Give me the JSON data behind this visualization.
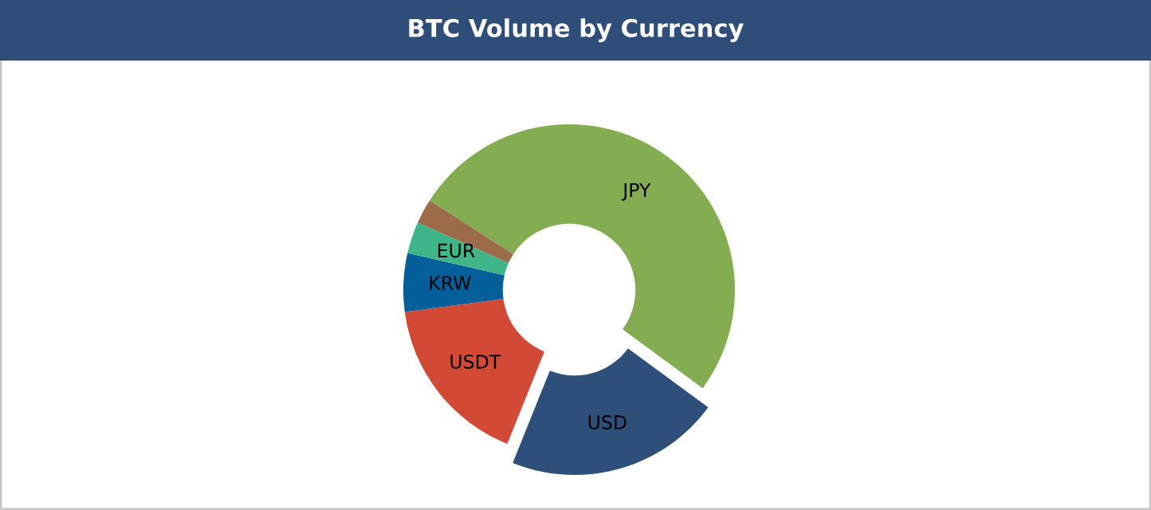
{
  "chart_data": {
    "type": "donut",
    "title": "BTC Volume by Currency",
    "categories": [
      "JPY",
      "USD",
      "USDT",
      "KRW",
      "EUR",
      null
    ],
    "values": [
      51,
      21,
      16.8,
      5.7,
      3.1,
      2.4
    ],
    "colors": [
      "#84ad52",
      "#2e4f7a",
      "#d24a35",
      "#045f9b",
      "#3fb68a",
      "#9b6b4a"
    ]
  }
}
